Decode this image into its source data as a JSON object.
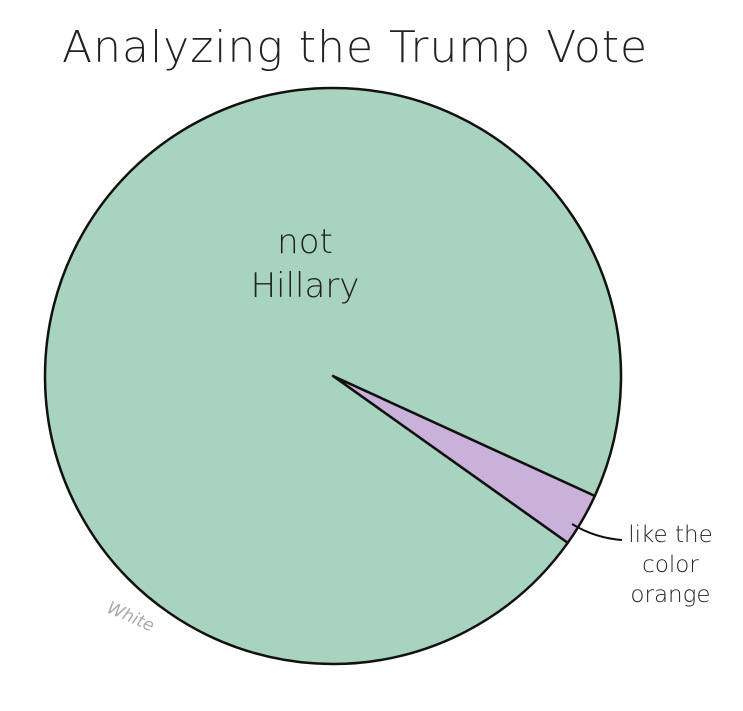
{
  "chart_data": {
    "type": "pie",
    "title": "Analyzing the Trump Vote",
    "categories": [
      "like the color orange",
      "not Hillary"
    ],
    "values": [
      3,
      97
    ],
    "colors": [
      "#c9b1d9",
      "#a8d3be"
    ],
    "signature": "White"
  }
}
